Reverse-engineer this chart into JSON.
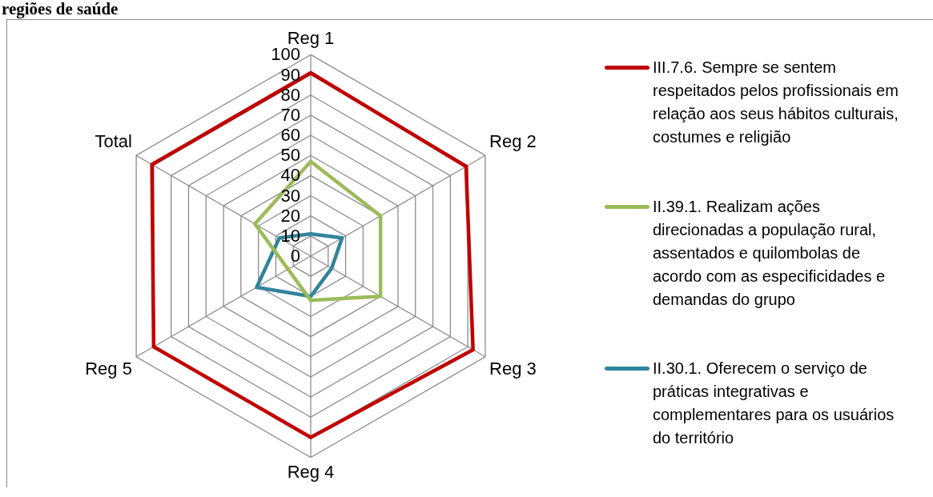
{
  "chart_data": {
    "type": "radar",
    "title": "regiões de saúde",
    "categories": [
      "Reg 1",
      "Reg 2",
      "Reg 3",
      "Reg 4",
      "Reg 5",
      "Total"
    ],
    "series": [
      {
        "name": "III.7.6. Sempre se sentem respeitados pelos profissionais em relação aos seus hábitos culturais, costumes e religião",
        "color": "#c00000",
        "values": [
          91,
          89,
          93,
          90,
          90,
          91
        ]
      },
      {
        "name": "II.39.1. Realizam ações direcionadas a população rural, assentados e quilombolas de acordo com as especificidades e demandas do grupo",
        "color": "#9bbb59",
        "values": [
          47,
          40,
          40,
          22,
          13,
          32
        ]
      },
      {
        "name": "II.30.1. Oferecem o serviço de práticas integrativas e complementares para os usuários do território",
        "color": "#31849b",
        "values": [
          11,
          18,
          12,
          20,
          31,
          18
        ]
      }
    ],
    "ylim": [
      0,
      100
    ],
    "yticks": [
      0,
      10,
      20,
      30,
      40,
      50,
      60,
      70,
      80,
      90,
      100
    ],
    "grid": true,
    "legend": "right",
    "marker": "none",
    "line_style": "solid"
  }
}
